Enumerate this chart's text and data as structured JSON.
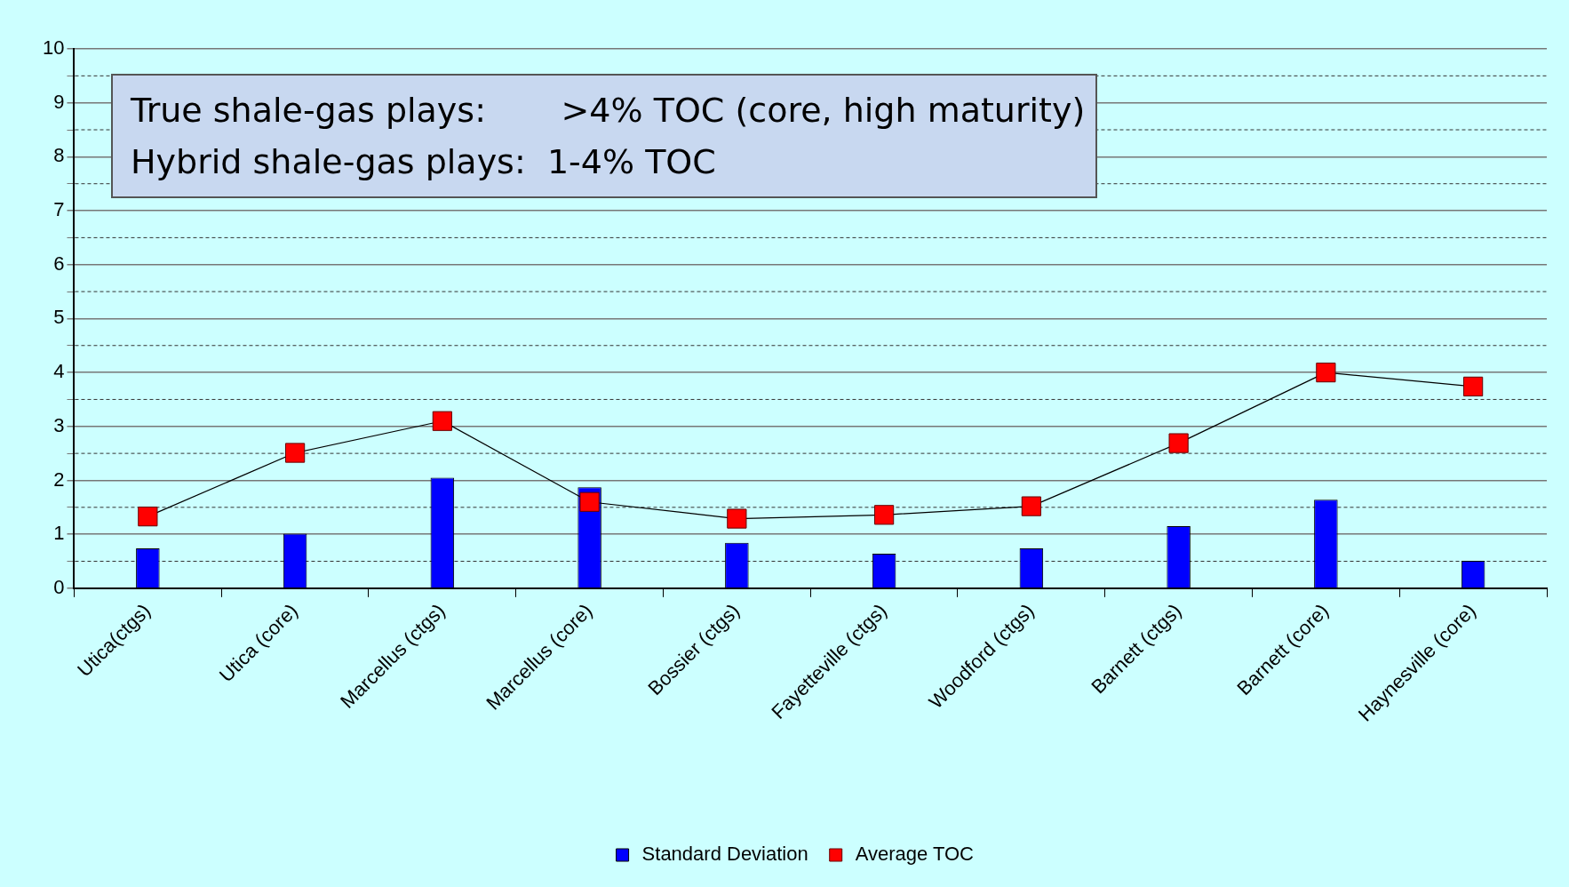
{
  "chart_data": {
    "type": "bar",
    "categories": [
      "Utica(ctgs)",
      "Utica (core)",
      "Marcellus (ctgs)",
      "Marcellus (core)",
      "Bossier (ctgs)",
      "Fayetteville (ctgs)",
      "Woodford (ctgs)",
      "Barnett (ctgs)",
      "Barnett (core)",
      "Haynesville (core)"
    ],
    "series": [
      {
        "name": "Standard Deviation",
        "color": "#0000ff",
        "values": [
          0.74,
          1.01,
          2.05,
          1.87,
          0.84,
          0.64,
          0.74,
          1.15,
          1.64,
          0.51
        ]
      },
      {
        "name": "Average TOC",
        "type": "line",
        "color": "#ff0000",
        "marker": "square",
        "values": [
          1.33,
          2.51,
          3.1,
          1.6,
          1.29,
          1.36,
          1.52,
          2.69,
          4.0,
          3.74
        ]
      }
    ],
    "ylim": [
      0,
      10
    ],
    "yticks": [
      0,
      {
        "value": 0.5,
        "label": null
      },
      1,
      {
        "value": 1.5,
        "label": null
      },
      2,
      {
        "value": 2.5,
        "label": null
      },
      3,
      {
        "value": 3.5,
        "label": null
      },
      4,
      {
        "value": 4.5,
        "label": null
      },
      5,
      {
        "value": 5.5,
        "label": null
      },
      6,
      {
        "value": 6.5,
        "label": null
      },
      7,
      {
        "value": 7.5,
        "label": null
      },
      8,
      {
        "value": 8.5,
        "label": null
      },
      9,
      {
        "value": 9.5,
        "label": null
      },
      10
    ],
    "grid": "y",
    "legend": "bottom",
    "annotations": [
      "True shale-gas plays:       >4% TOC (core, high maturity)",
      "Hybrid shale-gas plays:  1-4% TOC"
    ]
  }
}
